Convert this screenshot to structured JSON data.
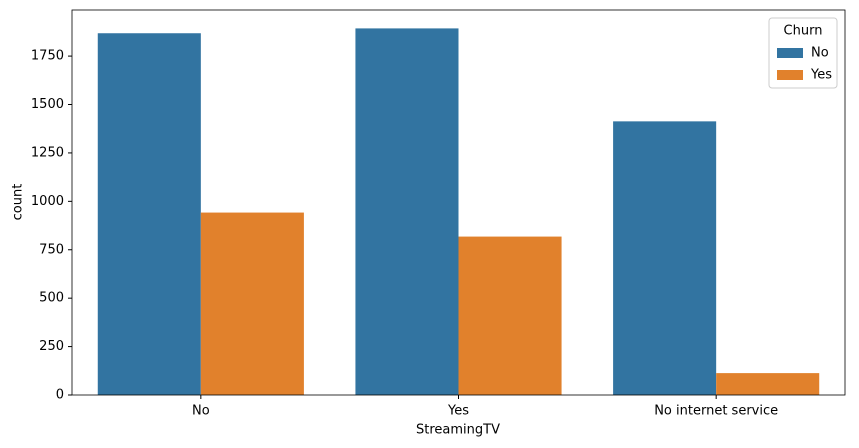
{
  "chart_data": {
    "type": "bar",
    "categories": [
      "No",
      "Yes",
      "No internet service"
    ],
    "series": [
      {
        "name": "No",
        "color": "#3274a1",
        "values": [
          1868,
          1893,
          1413
        ]
      },
      {
        "name": "Yes",
        "color": "#e1812c",
        "values": [
          942,
          818,
          113
        ]
      }
    ],
    "x_label": "StreamingTV",
    "y_label": "count",
    "legend_title": "Churn",
    "legend": "upper right",
    "ylim": [
      0,
      1988
    ],
    "yticks": [
      0,
      250,
      500,
      750,
      1000,
      1250,
      1500,
      1750
    ]
  }
}
